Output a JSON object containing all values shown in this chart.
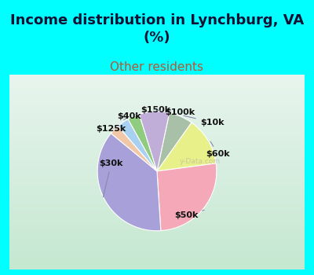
{
  "title": "Income distribution in Lynchburg, VA\n(%)",
  "subtitle": "Other residents",
  "title_color": "#111133",
  "subtitle_color": "#bb5533",
  "bg_cyan": "#00ffff",
  "panel_color_top": "#e8f5e8",
  "panel_color_bottom": "#d0ecd8",
  "labels": [
    "$10k",
    "$60k",
    "$50k",
    "$30k",
    "$125k",
    "$40k",
    "$150k",
    "$100k"
  ],
  "values": [
    6.0,
    12.0,
    24.0,
    34.0,
    2.5,
    3.0,
    3.0,
    7.5
  ],
  "colors": [
    "#a8bfa8",
    "#e8f08a",
    "#f4a8b8",
    "#a8a0d8",
    "#f0c8a8",
    "#a8d0f0",
    "#90cc80",
    "#c0aed8"
  ],
  "startangle": 78,
  "label_fontsize": 8,
  "title_fontsize": 13,
  "subtitle_fontsize": 11,
  "watermark": "y-Data.com"
}
